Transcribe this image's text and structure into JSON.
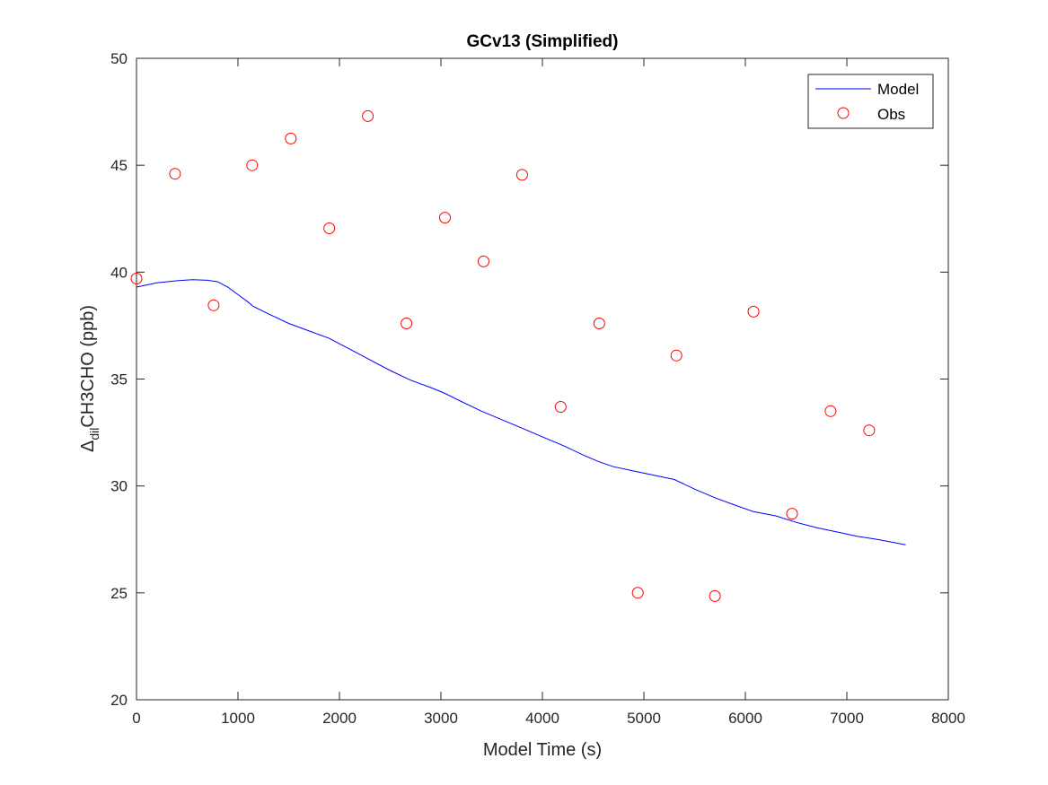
{
  "chart_data": {
    "type": "line",
    "title": "GCv13 (Simplified)",
    "xlabel": "Model Time (s)",
    "ylabel": {
      "prefix": "Δ",
      "subscript": "dil",
      "main": "CH3CHO (ppb)"
    },
    "xlim": [
      0,
      8000
    ],
    "ylim": [
      20,
      50
    ],
    "xticks": [
      0,
      1000,
      2000,
      3000,
      4000,
      5000,
      6000,
      7000,
      8000
    ],
    "yticks": [
      20,
      25,
      30,
      35,
      40,
      45,
      50
    ],
    "grid": false,
    "legend_position": "top-right",
    "colors": {
      "model": "#0000ff",
      "obs": "#ff0000",
      "axis": "#262626"
    },
    "series": [
      {
        "name": "Model",
        "style": "line",
        "x": [
          0,
          200,
          400,
          550,
          700,
          800,
          900,
          1000,
          1100,
          1150,
          1300,
          1500,
          1700,
          1900,
          2100,
          2300,
          2500,
          2700,
          2900,
          3030,
          3200,
          3400,
          3600,
          3800,
          4000,
          4200,
          4400,
          4550,
          4700,
          4900,
          5100,
          5300,
          5500,
          5700,
          5900,
          6080,
          6300,
          6500,
          6700,
          6900,
          7100,
          7300,
          7580
        ],
        "y": [
          39.3,
          39.5,
          39.6,
          39.65,
          39.62,
          39.55,
          39.3,
          38.95,
          38.6,
          38.4,
          38.05,
          37.6,
          37.25,
          36.9,
          36.4,
          35.9,
          35.4,
          34.95,
          34.6,
          34.35,
          33.95,
          33.5,
          33.1,
          32.7,
          32.3,
          31.9,
          31.45,
          31.15,
          30.9,
          30.7,
          30.5,
          30.3,
          29.85,
          29.45,
          29.1,
          28.8,
          28.6,
          28.3,
          28.05,
          27.85,
          27.65,
          27.5,
          27.25
        ]
      },
      {
        "name": "Obs",
        "style": "markers",
        "x": [
          0,
          380,
          760,
          1140,
          1520,
          1900,
          2280,
          2660,
          3040,
          3420,
          3800,
          4180,
          4560,
          4940,
          5320,
          5700,
          6080,
          6460,
          6840,
          7220
        ],
        "y": [
          39.7,
          44.6,
          38.45,
          45.0,
          46.25,
          42.05,
          47.3,
          37.6,
          42.55,
          40.5,
          44.55,
          33.7,
          37.6,
          25.0,
          36.1,
          24.85,
          38.15,
          28.7,
          33.5,
          32.6
        ]
      }
    ]
  }
}
